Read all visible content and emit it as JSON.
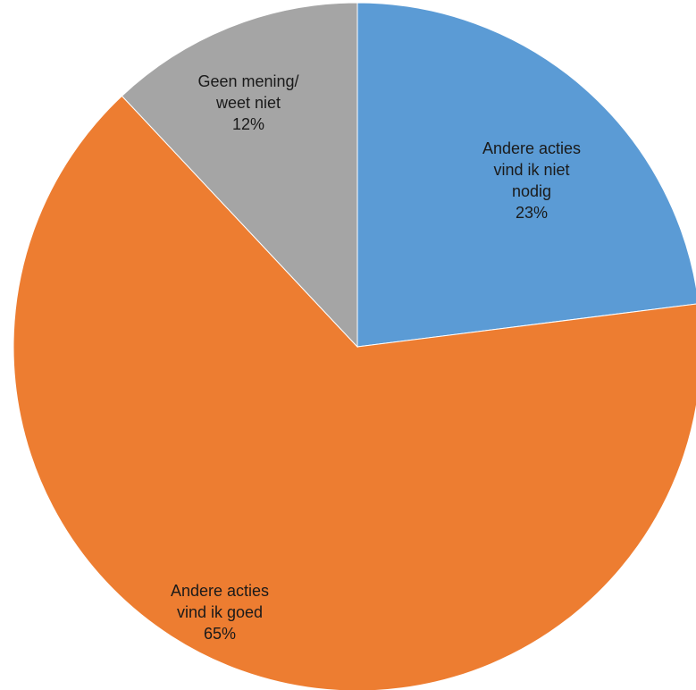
{
  "chart_data": {
    "type": "pie",
    "start_angle_deg": 0,
    "direction": "clockwise",
    "slices": [
      {
        "label_lines": [
          "Andere acties",
          "vind ik niet",
          "nodig"
        ],
        "percent_label": "23%",
        "value": 23,
        "color": "#5b9bd5"
      },
      {
        "label_lines": [
          "Andere acties",
          "vind ik goed"
        ],
        "percent_label": "65%",
        "value": 65,
        "color": "#ed7d31"
      },
      {
        "label_lines": [
          "Geen mening/",
          "weet niet"
        ],
        "percent_label": "12%",
        "value": 12,
        "color": "#a5a5a5"
      }
    ]
  }
}
